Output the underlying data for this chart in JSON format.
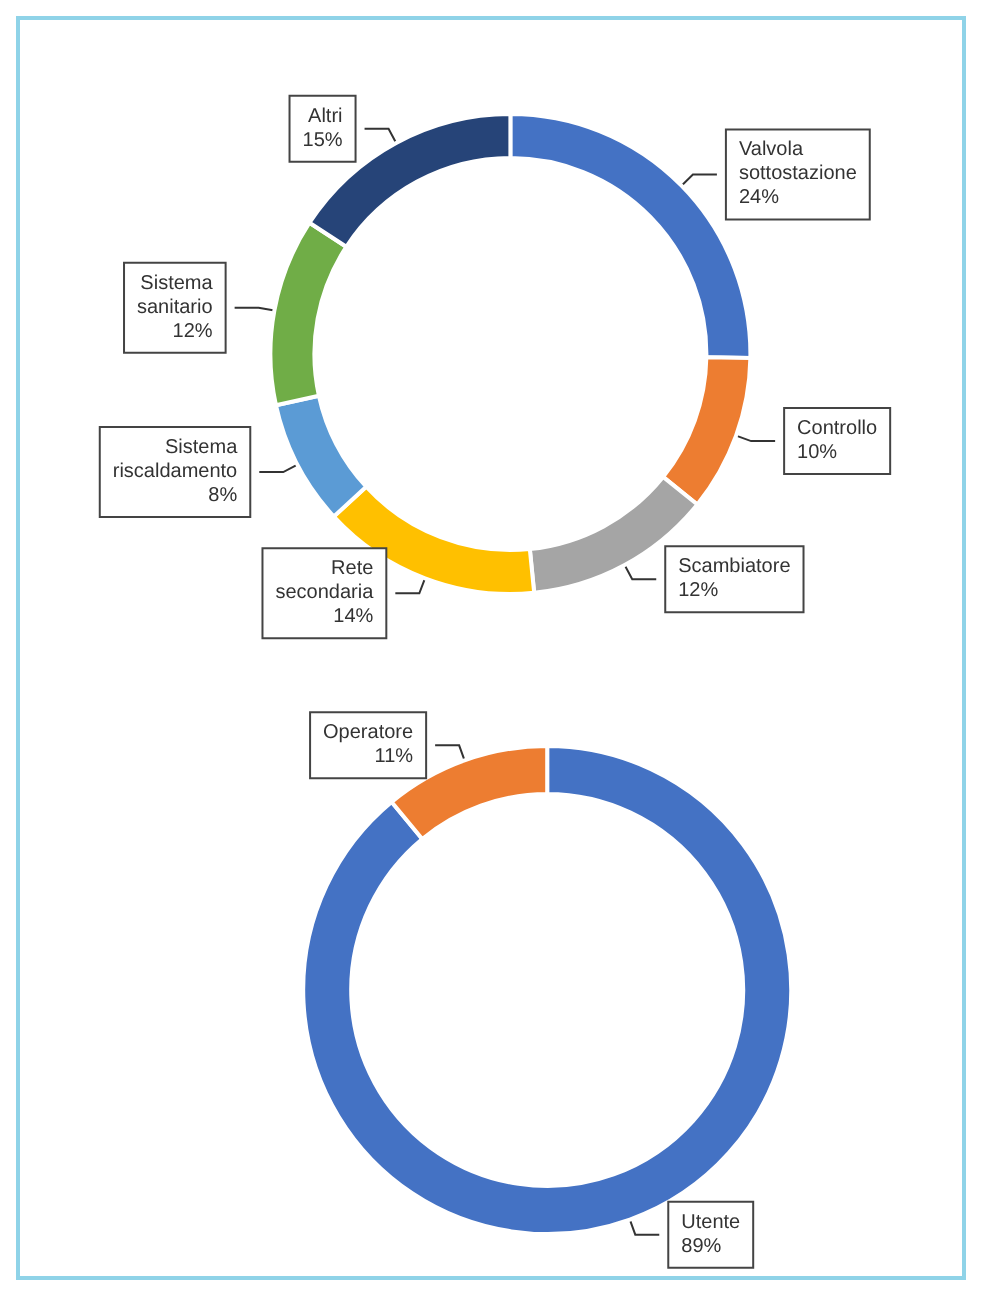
{
  "chart_data": [
    {
      "type": "donut",
      "categories": [
        "Valvola sottostazione",
        "Controllo",
        "Scambiatore",
        "Rete secondaria",
        "Sistema riscaldamento",
        "Sistema sanitario",
        "Altri"
      ],
      "values": [
        24,
        10,
        12,
        14,
        8,
        12,
        15
      ],
      "value_labels": [
        "24%",
        "10%",
        "12%",
        "14%",
        "8%",
        "12%",
        "15%"
      ],
      "colors": [
        "#4472c4",
        "#ed7d31",
        "#a5a5a5",
        "#ffc000",
        "#5b9bd5",
        "#70ad47",
        "#264478"
      ],
      "legend": false
    },
    {
      "type": "donut",
      "categories": [
        "Utente",
        "Operatore"
      ],
      "values": [
        89,
        11
      ],
      "value_labels": [
        "89%",
        "11%"
      ],
      "colors": [
        "#4472c4",
        "#ed7d31"
      ],
      "legend": false
    }
  ]
}
